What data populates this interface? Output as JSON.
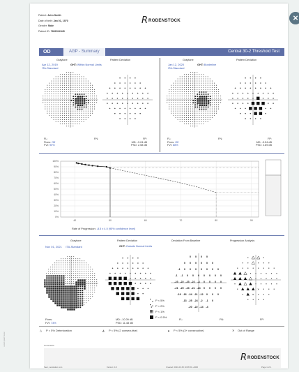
{
  "patient": {
    "name_label": "Patient:",
    "name": "John Smith",
    "dob_label": "Date of birth:",
    "dob": "Jan 01, 1970",
    "gender_label": "Gender:",
    "gender": "Male",
    "id_label": "Patient ID:",
    "id": "7891512345"
  },
  "brand": {
    "mark": "R",
    "name": "RODENSTOCK"
  },
  "close_glyph": "×",
  "title_bar": {
    "eye": "OD",
    "summary": "AGP - Summary",
    "test": "Central 30-2 Threshold Test"
  },
  "headers": {
    "graytone": "Graytone",
    "pattern_deviation": "Pattern Deviation",
    "deviation_from_baseline": "Deviation From Baseline",
    "progression_analysis": "Progression Analysis"
  },
  "exam1": {
    "date": "Apr 12, 2019",
    "strategy": "ITA-Standard",
    "ght_label": "GHT:",
    "ght_value": "Within Normal Limits",
    "fl": "FL:",
    "fn": "FN:",
    "fp": "FP:",
    "fixes_label": "Fixes:",
    "fixes": "Off",
    "fvi_label": "FVI:",
    "fvi": "90%",
    "md_label": "MD:",
    "md": "-3.24 dB",
    "psd_label": "PSD:",
    "psd": "2.58 dB"
  },
  "exam2": {
    "date": "Jan 12, 2020",
    "strategy": "ITA-Standard",
    "ght_label": "GHT:",
    "ght_value": "Borderline",
    "fl": "FL:",
    "fn": "FN:",
    "fp": "FP:",
    "fixes_label": "Fixes:",
    "fixes": "Off",
    "fvi_label": "FVI:",
    "fvi": "88%",
    "md_label": "MD:",
    "md": "-3.54 dB",
    "psd_label": "PSD:",
    "psd": "2.89 dB"
  },
  "progression_chart": {
    "y_ticks": [
      "100%",
      "90%",
      "80%",
      "70%",
      "60%",
      "50%",
      "40%",
      "30%",
      "20%",
      "10%",
      "0%"
    ],
    "x_ticks": [
      "40",
      "50",
      "60",
      "70",
      "80",
      "90"
    ],
    "rate_label": "Rate of Progression:",
    "rate_value": "-8.5 ± 4.0 (95% confidence level)"
  },
  "chart_data": {
    "type": "line",
    "series": [
      {
        "name": "",
        "x": [
          40.5,
          41,
          42,
          43,
          44,
          45,
          46.5,
          49,
          50
        ],
        "y": [
          97,
          96,
          95,
          94,
          93,
          92,
          91,
          90,
          88
        ]
      },
      {
        "name": "",
        "x": [
          50,
          56,
          62,
          68,
          74,
          80
        ],
        "y": [
          88,
          80,
          72,
          64,
          55,
          44
        ]
      }
    ],
    "xlim": [
      36,
      92
    ],
    "ylim": [
      0,
      100
    ],
    "grid": true
  },
  "exam3": {
    "date": "Nov 01, 2021",
    "strategy": "ITA-Standard",
    "ght_label": "GHT:",
    "ght_value": "Outside Normal Limits",
    "fixes_label": "Fixes:",
    "fixes": "",
    "fvi_label": "FVI:",
    "fvi": "73%",
    "md_label": "MD:",
    "md": "-10.09 dB",
    "psd_label": "PSD:",
    "psd": "11.48 dB",
    "fl": "FL:",
    "fn": "FN:",
    "fp": "FP:"
  },
  "prob_legend": [
    "P < 5%",
    "P < 2%",
    "P < 1%",
    "P < 0.5%"
  ],
  "baseline_values": [
    [
      "0",
      "0",
      "0",
      "0"
    ],
    [
      "0",
      "0",
      "0",
      "0",
      "0",
      "0"
    ],
    [
      "-1",
      "0",
      "0",
      "0",
      "0",
      "0",
      "0",
      "0"
    ],
    [
      "-1",
      "-1",
      "0",
      "0",
      "0",
      "0",
      "0",
      "0",
      "0"
    ],
    [
      "-23",
      "-22",
      "-23",
      "-22",
      "-4",
      "0",
      "0",
      "0",
      "0"
    ],
    [
      "-21",
      "-20",
      "-23",
      "-21",
      "-24",
      "0",
      "0",
      "0",
      "0"
    ],
    [
      "-19",
      "-16",
      "-24",
      "-21",
      "-12",
      "0",
      "0",
      "0"
    ],
    [
      "-13",
      "-25",
      "-24",
      "-2",
      "-1",
      "0"
    ],
    [
      "-20",
      "-22",
      "-14",
      "-4"
    ]
  ],
  "bottom_legend": {
    "l1": "P < 5% Deterioration",
    "l2": "P < 5% (2 consecutive)",
    "l3": "P < 5% (3+ consecutive)",
    "l4": "Out of Range"
  },
  "comments_label": "Comments:",
  "footer": {
    "left": "Seer, Lenstation.com",
    "mid": "Version: 4.0",
    "mid2": "Created: 2021-03-05 10:06:53 +0200",
    "right": "Page 1 of 1"
  },
  "sidenote": "Lorem ipsum footer"
}
